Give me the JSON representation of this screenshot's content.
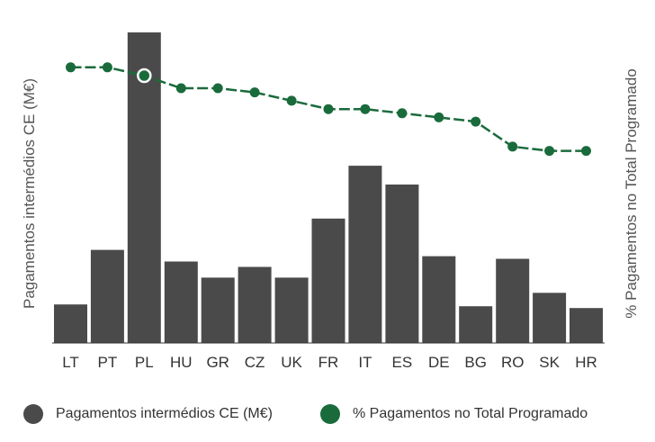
{
  "chart_data": {
    "type": "bar",
    "categories": [
      "LT",
      "PT",
      "PL",
      "HU",
      "GR",
      "CZ",
      "UK",
      "FR",
      "IT",
      "ES",
      "DE",
      "BG",
      "RO",
      "SK",
      "HR"
    ],
    "y_left_label": "Pagamentos intermédios CE (M€)",
    "y_right_label": "% Pagamentos no Total Programado",
    "series": [
      {
        "name": "Pagamentos intermédios CE (M€)",
        "type": "bar",
        "axis": "left",
        "color": "#4a4a4a",
        "values": [
          43,
          104,
          347,
          91,
          73,
          85,
          73,
          139,
          198,
          177,
          97,
          41,
          94,
          56,
          39
        ]
      },
      {
        "name": "% Pagamentos no Total Programado",
        "type": "line",
        "axis": "right",
        "color": "#1a6b3c",
        "values": [
          66,
          66,
          64,
          61,
          61,
          60,
          58,
          56,
          56,
          55,
          54,
          53,
          47,
          46,
          46
        ]
      }
    ],
    "highlighted_point": {
      "series": "% Pagamentos no Total Programado",
      "category": "PL"
    },
    "ylim_left": [
      0,
      350
    ],
    "ylim_right": [
      0,
      75
    ],
    "grid": false,
    "legend_position": "bottom"
  }
}
